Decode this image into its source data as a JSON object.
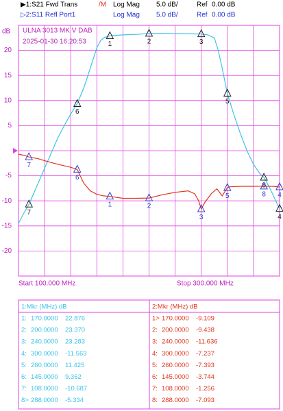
{
  "header": {
    "trace1": "▶1:S21 Fwd Trans",
    "marker_flag": "/M",
    "format1": "Log Mag",
    "scale1": "5.0 dB/",
    "ref_word1": "Ref",
    "ref1": "0.00 dB",
    "trace2": "▷2:S11 Refl Port1",
    "format2": "Log Mag",
    "scale2": "5.0 dB/",
    "ref_word2": "Ref",
    "ref2": "0.00 dB"
  },
  "chart_data": {
    "type": "line",
    "title": "ULNA 3013 MK V DAB",
    "subtitle": "2025-01-30 16:20:53",
    "y_unit": "dB",
    "start_label": "Start 100.000 MHz",
    "stop_label": "Stop 300.000 MHz",
    "xlim": [
      100,
      300
    ],
    "ylim": [
      -25,
      25
    ],
    "yticks": [
      20,
      15,
      10,
      5,
      -5,
      -10,
      -15,
      -20
    ],
    "ref": 0,
    "grid": true,
    "series": [
      {
        "name": "1:S21 Fwd Trans",
        "color": "#3cc4e6",
        "x": [
          100,
          104,
          108,
          115,
          120,
          125,
          130,
          135,
          140,
          145,
          150,
          155,
          160,
          163,
          166,
          170,
          180,
          190,
          200,
          210,
          220,
          230,
          240,
          245,
          250,
          253,
          256,
          260,
          265,
          270,
          275,
          280,
          285,
          288,
          292,
          296,
          300
        ],
        "values": [
          -14.5,
          -12.5,
          -10.7,
          -6.5,
          -3.5,
          -0.5,
          2.5,
          5,
          7.3,
          9.4,
          12.5,
          16.5,
          20.5,
          22,
          22.6,
          22.9,
          23.1,
          23.2,
          23.37,
          23.4,
          23.35,
          23.3,
          23.28,
          23.1,
          22.5,
          20,
          16.5,
          11.4,
          7.2,
          3.4,
          0,
          -2.7,
          -4.6,
          -5.3,
          -7.2,
          -9.4,
          -11.6
        ],
        "markers": {
          "table_header": "1:Mkr (MHz)   dB",
          "table_ids": [
            "1:",
            "2:",
            "3:",
            "4:",
            "5:",
            "6:",
            "7:",
            "8>"
          ],
          "ids": [
            "1",
            "2",
            "3",
            "4",
            "5",
            "6",
            "7",
            "8"
          ],
          "x": [
            170,
            200,
            240,
            300,
            260,
            145,
            108,
            288
          ],
          "x_labels": [
            "170.0000",
            "200.0000",
            "240.0000",
            "300.0000",
            "260.0000",
            "145.0000",
            "108.0000",
            "288.0000"
          ],
          "values": [
            22.876,
            23.37,
            23.283,
            -11.563,
            11.425,
            9.362,
            -10.687,
            -5.334
          ],
          "value_labels": [
            "22.876",
            "23.370",
            "23.283",
            "-11.563",
            "11.425",
            "9.362",
            "-10.687",
            "-5.334"
          ]
        }
      },
      {
        "name": "2:S11 Refl Port1",
        "color": "#e0341e",
        "x": [
          100,
          104,
          108,
          115,
          120,
          130,
          140,
          145,
          150,
          155,
          160,
          165,
          170,
          180,
          190,
          200,
          210,
          220,
          230,
          235,
          238,
          240,
          243,
          248,
          252,
          256,
          258,
          260,
          262,
          270,
          280,
          288,
          295,
          300
        ],
        "values": [
          -0.7,
          -0.9,
          -1.256,
          -1.6,
          -2,
          -2.7,
          -3.3,
          -3.744,
          -6.5,
          -8,
          -8.7,
          -9,
          -9.109,
          -9.5,
          -9.5,
          -9.438,
          -8.8,
          -8.3,
          -8.0,
          -8.6,
          -10,
          -11.636,
          -10.2,
          -8.5,
          -7.6,
          -9,
          -8.2,
          -7.393,
          -7.2,
          -7.1,
          -7.1,
          -7.093,
          -7.1,
          -7.237
        ],
        "markers": {
          "table_header": "2:Mkr (MHz)  dB",
          "table_ids": [
            "1>",
            "2:",
            "3:",
            "4:",
            "5:",
            "6:",
            "7:",
            "8:"
          ],
          "ids": [
            "1",
            "2",
            "3",
            "4",
            "5",
            "6",
            "7",
            "8"
          ],
          "x": [
            170,
            200,
            240,
            300,
            260,
            145,
            108,
            288
          ],
          "x_labels": [
            "170.0000",
            "200.0000",
            "240.0000",
            "300.0000",
            "260.0000",
            "145.0000",
            "108.0000",
            "288.0000"
          ],
          "values": [
            -9.109,
            -9.438,
            -11.636,
            -7.237,
            -7.393,
            -3.744,
            -1.256,
            -7.093
          ],
          "value_labels": [
            "-9.109",
            "-9.438",
            "-11.636",
            "-7.237",
            "-7.393",
            "-3.744",
            "-1.256",
            "-7.093"
          ]
        }
      }
    ]
  }
}
